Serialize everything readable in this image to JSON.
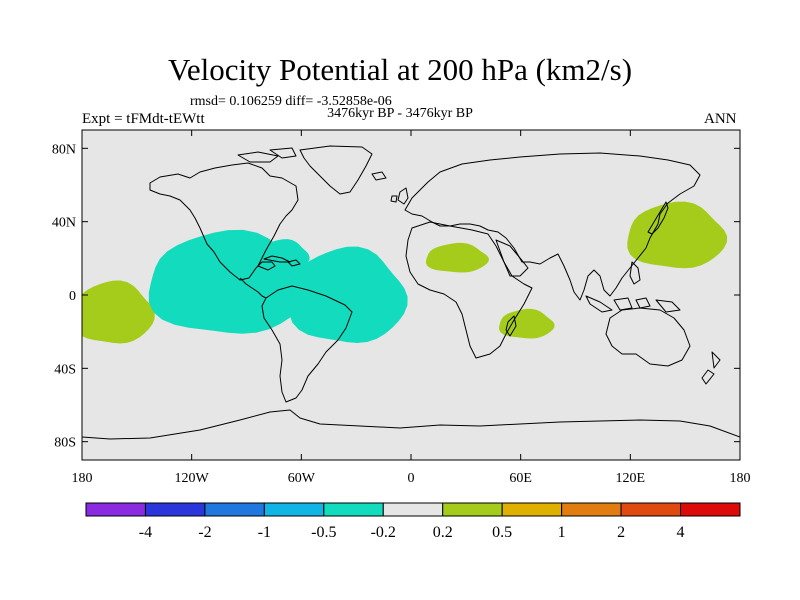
{
  "figure": {
    "title": "Velocity Potential at 200 hPa (km2/s)",
    "stats": "rmsd= 0.106259 diff= -3.52858e-06",
    "subtitle": "3476kyr BP - 3476kyr BP",
    "left_label": "Expt = tFMdt-tEWtt",
    "right_label": "ANN"
  },
  "map": {
    "projection": "cylindrical equidistant",
    "lon_range": [
      -180,
      180
    ],
    "lat_range": [
      -90,
      90
    ],
    "background_color": "#e6e6e6",
    "y_ticks": [
      {
        "lat": 80,
        "label": "80N"
      },
      {
        "lat": 40,
        "label": "40N"
      },
      {
        "lat": 0,
        "label": "0"
      },
      {
        "lat": -40,
        "label": "40S"
      },
      {
        "lat": -80,
        "label": "80S"
      }
    ],
    "x_ticks": [
      {
        "lon": -180,
        "label": "180"
      },
      {
        "lon": -120,
        "label": "120W"
      },
      {
        "lon": -60,
        "label": "60W"
      },
      {
        "lon": 0,
        "label": "0"
      },
      {
        "lon": 60,
        "label": "60E"
      },
      {
        "lon": 120,
        "label": "120E"
      },
      {
        "lon": 180,
        "label": "180"
      }
    ],
    "anomalies": [
      {
        "name": "central-pacific-positive",
        "value_bin": "0.2 to 0.5",
        "color": "#a5cc1a",
        "center_lon": -163,
        "center_lat": -10,
        "lon_extent": 22,
        "lat_extent": 17
      },
      {
        "name": "east-pacific-negative",
        "value_bin": "-0.5 to -0.2",
        "color": "#13dbbd",
        "center_lon": -100,
        "center_lat": 6,
        "lon_extent": 44,
        "lat_extent": 28
      },
      {
        "name": "caribbean-negative",
        "value_bin": "-0.5 to -0.2",
        "color": "#13dbbd",
        "center_lon": -70,
        "center_lat": 21,
        "lon_extent": 14,
        "lat_extent": 9
      },
      {
        "name": "south-america-atlantic-negative",
        "value_bin": "-0.5 to -0.2",
        "color": "#13dbbd",
        "center_lon": -35,
        "center_lat": -1,
        "lon_extent": 32,
        "lat_extent": 26
      },
      {
        "name": "north-africa-positive",
        "value_bin": "0.2 to 0.5",
        "color": "#a5cc1a",
        "center_lon": 25,
        "center_lat": 20,
        "lon_extent": 17,
        "lat_extent": 8
      },
      {
        "name": "indian-ocean-positive",
        "value_bin": "0.2 to 0.5",
        "color": "#a5cc1a",
        "center_lon": 63,
        "center_lat": -16,
        "lon_extent": 15,
        "lat_extent": 8
      },
      {
        "name": "northwest-pacific-positive",
        "value_bin": "0.2 to 0.5",
        "color": "#a5cc1a",
        "center_lon": 145,
        "center_lat": 32,
        "lon_extent": 27,
        "lat_extent": 18
      }
    ]
  },
  "colorbar": {
    "colors": [
      "#8a2be2",
      "#2a36dc",
      "#1e78e0",
      "#10b5e6",
      "#13dbbd",
      "#e6e6e6",
      "#a5cc1a",
      "#e0b000",
      "#e07c10",
      "#e04a10",
      "#dd0a0a"
    ],
    "labels": [
      "-4",
      "-2",
      "-1",
      "-0.5",
      "-0.2",
      "0.2",
      "0.5",
      "1",
      "2",
      "4"
    ]
  }
}
